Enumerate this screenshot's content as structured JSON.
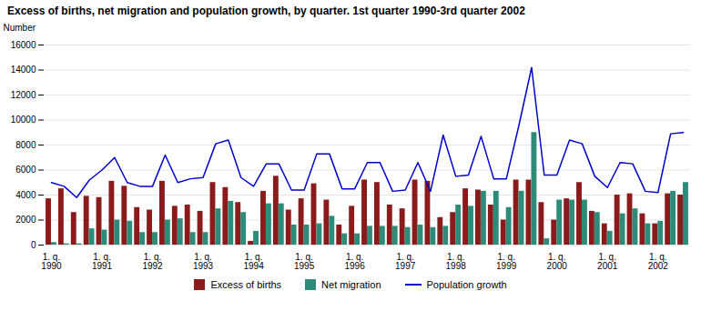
{
  "chart_data": {
    "type": "bar",
    "title": "Excess of births, net migration and population growth, by quarter. 1st quarter 1990-3rd quarter 2002",
    "ylabel": "Number",
    "categories": [
      "1. q.\n1990",
      null,
      null,
      null,
      "1. q.\n1991",
      null,
      null,
      null,
      "1. q.\n1992",
      null,
      null,
      null,
      "1. q.\n1993",
      null,
      null,
      null,
      "1. q.\n1994",
      null,
      null,
      null,
      "1. q.\n1995",
      null,
      null,
      null,
      "1. q.\n1996",
      null,
      null,
      null,
      "1. q.\n1997",
      null,
      null,
      null,
      "1. q.\n1998",
      null,
      null,
      null,
      "1. q.\n1999",
      null,
      null,
      null,
      "1. q.\n2000",
      null,
      null,
      null,
      "1. q.\n2001",
      null,
      null,
      null,
      "1. q.\n2002",
      null,
      null
    ],
    "series": [
      {
        "name": "Excess of births",
        "type": "bar",
        "color": "#8B1A1A",
        "values": [
          3700,
          4500,
          2600,
          3900,
          3800,
          5100,
          4700,
          3000,
          2800,
          5100,
          3100,
          3200,
          2700,
          5000,
          4600,
          3400,
          300,
          4300,
          5500,
          2800,
          3700,
          4900,
          3600,
          1600,
          3100,
          5200,
          5000,
          3200,
          2900,
          5200,
          5100,
          2200,
          2600,
          4500,
          4400,
          3200,
          2000,
          5200,
          5200,
          3400,
          2000,
          3700,
          5000,
          2700,
          1700,
          4000,
          4100,
          2500,
          1700,
          4100,
          4000
        ]
      },
      {
        "name": "Net migration",
        "type": "bar",
        "color": "#2E8B7A",
        "values": [
          200,
          100,
          100,
          1300,
          1200,
          2000,
          1900,
          1000,
          1000,
          2000,
          2100,
          1000,
          1000,
          2900,
          3500,
          2600,
          1100,
          3300,
          3300,
          1600,
          1600,
          1700,
          2300,
          900,
          900,
          1500,
          1500,
          1500,
          1400,
          1600,
          1400,
          1500,
          3200,
          3100,
          4300,
          4300,
          3000,
          4300,
          9000,
          500,
          3600,
          3600,
          3600,
          2600,
          1100,
          2500,
          2900,
          1700,
          1900,
          4300,
          5000
        ]
      },
      {
        "name": "Population growth",
        "type": "line",
        "color": "#0000CC",
        "values": [
          5000,
          4700,
          3800,
          5200,
          6000,
          7000,
          5000,
          4700,
          4700,
          7200,
          5000,
          5300,
          5400,
          8100,
          8400,
          5400,
          4700,
          6500,
          6500,
          4400,
          4400,
          7300,
          7300,
          4500,
          4500,
          6600,
          6600,
          4300,
          4400,
          6600,
          4300,
          8800,
          5500,
          5600,
          8700,
          5300,
          5300,
          9600,
          14200,
          5600,
          5600,
          8400,
          8100,
          5500,
          4600,
          6600,
          6500,
          4300,
          4200,
          8900,
          9000
        ]
      }
    ],
    "ylim": [
      0,
      16000
    ],
    "yticks": [
      0,
      2000,
      4000,
      6000,
      8000,
      10000,
      12000,
      14000,
      16000
    ],
    "grid": true,
    "legend": "bottom"
  }
}
